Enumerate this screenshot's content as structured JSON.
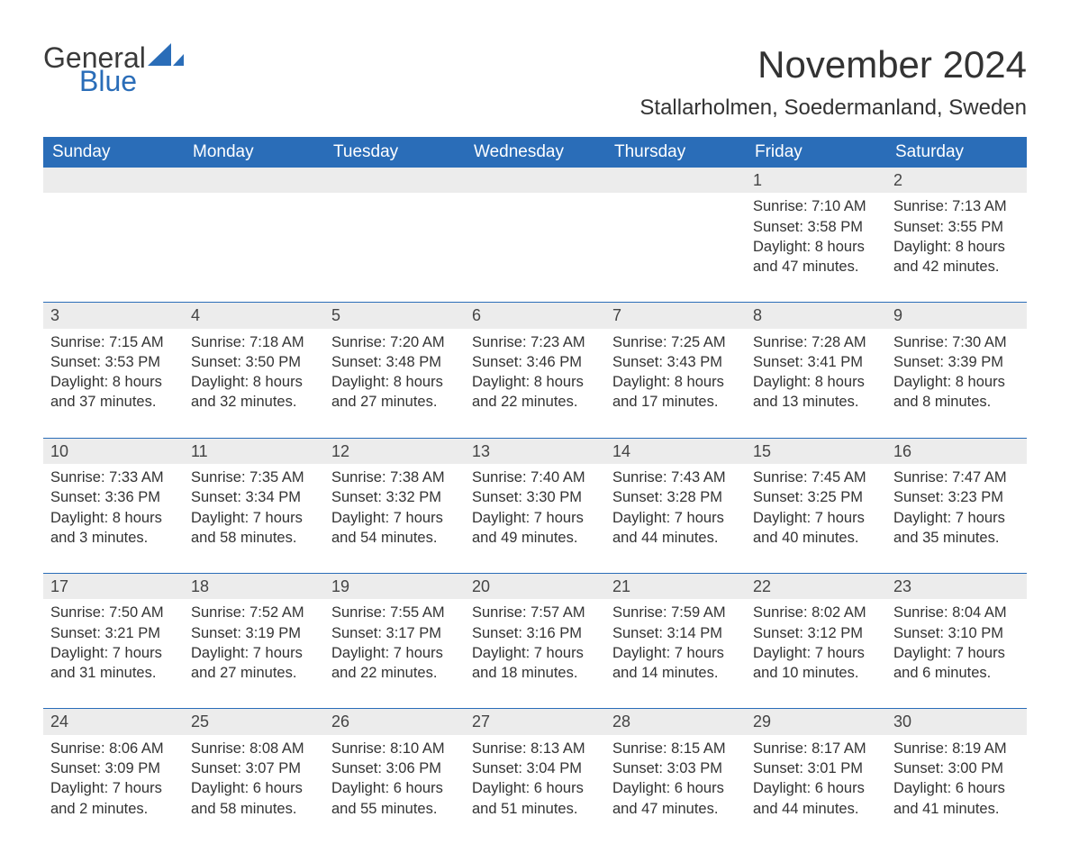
{
  "logo": {
    "general": "General",
    "blue": "Blue",
    "flag_color": "#2a6db8"
  },
  "title": "November 2024",
  "location": "Stallarholmen, Soedermanland, Sweden",
  "colors": {
    "header_bg": "#2a6db8",
    "header_fg": "#ffffff",
    "daynum_bg": "#ececec",
    "text": "#333333",
    "row_divider": "#2a6db8",
    "page_bg": "#ffffff"
  },
  "weekdays": [
    "Sunday",
    "Monday",
    "Tuesday",
    "Wednesday",
    "Thursday",
    "Friday",
    "Saturday"
  ],
  "weeks": [
    [
      {
        "n": "",
        "empty": true
      },
      {
        "n": "",
        "empty": true
      },
      {
        "n": "",
        "empty": true
      },
      {
        "n": "",
        "empty": true
      },
      {
        "n": "",
        "empty": true
      },
      {
        "n": "1",
        "sunrise": "Sunrise: 7:10 AM",
        "sunset": "Sunset: 3:58 PM",
        "daylight1": "Daylight: 8 hours",
        "daylight2": "and 47 minutes."
      },
      {
        "n": "2",
        "sunrise": "Sunrise: 7:13 AM",
        "sunset": "Sunset: 3:55 PM",
        "daylight1": "Daylight: 8 hours",
        "daylight2": "and 42 minutes."
      }
    ],
    [
      {
        "n": "3",
        "sunrise": "Sunrise: 7:15 AM",
        "sunset": "Sunset: 3:53 PM",
        "daylight1": "Daylight: 8 hours",
        "daylight2": "and 37 minutes."
      },
      {
        "n": "4",
        "sunrise": "Sunrise: 7:18 AM",
        "sunset": "Sunset: 3:50 PM",
        "daylight1": "Daylight: 8 hours",
        "daylight2": "and 32 minutes."
      },
      {
        "n": "5",
        "sunrise": "Sunrise: 7:20 AM",
        "sunset": "Sunset: 3:48 PM",
        "daylight1": "Daylight: 8 hours",
        "daylight2": "and 27 minutes."
      },
      {
        "n": "6",
        "sunrise": "Sunrise: 7:23 AM",
        "sunset": "Sunset: 3:46 PM",
        "daylight1": "Daylight: 8 hours",
        "daylight2": "and 22 minutes."
      },
      {
        "n": "7",
        "sunrise": "Sunrise: 7:25 AM",
        "sunset": "Sunset: 3:43 PM",
        "daylight1": "Daylight: 8 hours",
        "daylight2": "and 17 minutes."
      },
      {
        "n": "8",
        "sunrise": "Sunrise: 7:28 AM",
        "sunset": "Sunset: 3:41 PM",
        "daylight1": "Daylight: 8 hours",
        "daylight2": "and 13 minutes."
      },
      {
        "n": "9",
        "sunrise": "Sunrise: 7:30 AM",
        "sunset": "Sunset: 3:39 PM",
        "daylight1": "Daylight: 8 hours",
        "daylight2": "and 8 minutes."
      }
    ],
    [
      {
        "n": "10",
        "sunrise": "Sunrise: 7:33 AM",
        "sunset": "Sunset: 3:36 PM",
        "daylight1": "Daylight: 8 hours",
        "daylight2": "and 3 minutes."
      },
      {
        "n": "11",
        "sunrise": "Sunrise: 7:35 AM",
        "sunset": "Sunset: 3:34 PM",
        "daylight1": "Daylight: 7 hours",
        "daylight2": "and 58 minutes."
      },
      {
        "n": "12",
        "sunrise": "Sunrise: 7:38 AM",
        "sunset": "Sunset: 3:32 PM",
        "daylight1": "Daylight: 7 hours",
        "daylight2": "and 54 minutes."
      },
      {
        "n": "13",
        "sunrise": "Sunrise: 7:40 AM",
        "sunset": "Sunset: 3:30 PM",
        "daylight1": "Daylight: 7 hours",
        "daylight2": "and 49 minutes."
      },
      {
        "n": "14",
        "sunrise": "Sunrise: 7:43 AM",
        "sunset": "Sunset: 3:28 PM",
        "daylight1": "Daylight: 7 hours",
        "daylight2": "and 44 minutes."
      },
      {
        "n": "15",
        "sunrise": "Sunrise: 7:45 AM",
        "sunset": "Sunset: 3:25 PM",
        "daylight1": "Daylight: 7 hours",
        "daylight2": "and 40 minutes."
      },
      {
        "n": "16",
        "sunrise": "Sunrise: 7:47 AM",
        "sunset": "Sunset: 3:23 PM",
        "daylight1": "Daylight: 7 hours",
        "daylight2": "and 35 minutes."
      }
    ],
    [
      {
        "n": "17",
        "sunrise": "Sunrise: 7:50 AM",
        "sunset": "Sunset: 3:21 PM",
        "daylight1": "Daylight: 7 hours",
        "daylight2": "and 31 minutes."
      },
      {
        "n": "18",
        "sunrise": "Sunrise: 7:52 AM",
        "sunset": "Sunset: 3:19 PM",
        "daylight1": "Daylight: 7 hours",
        "daylight2": "and 27 minutes."
      },
      {
        "n": "19",
        "sunrise": "Sunrise: 7:55 AM",
        "sunset": "Sunset: 3:17 PM",
        "daylight1": "Daylight: 7 hours",
        "daylight2": "and 22 minutes."
      },
      {
        "n": "20",
        "sunrise": "Sunrise: 7:57 AM",
        "sunset": "Sunset: 3:16 PM",
        "daylight1": "Daylight: 7 hours",
        "daylight2": "and 18 minutes."
      },
      {
        "n": "21",
        "sunrise": "Sunrise: 7:59 AM",
        "sunset": "Sunset: 3:14 PM",
        "daylight1": "Daylight: 7 hours",
        "daylight2": "and 14 minutes."
      },
      {
        "n": "22",
        "sunrise": "Sunrise: 8:02 AM",
        "sunset": "Sunset: 3:12 PM",
        "daylight1": "Daylight: 7 hours",
        "daylight2": "and 10 minutes."
      },
      {
        "n": "23",
        "sunrise": "Sunrise: 8:04 AM",
        "sunset": "Sunset: 3:10 PM",
        "daylight1": "Daylight: 7 hours",
        "daylight2": "and 6 minutes."
      }
    ],
    [
      {
        "n": "24",
        "sunrise": "Sunrise: 8:06 AM",
        "sunset": "Sunset: 3:09 PM",
        "daylight1": "Daylight: 7 hours",
        "daylight2": "and 2 minutes."
      },
      {
        "n": "25",
        "sunrise": "Sunrise: 8:08 AM",
        "sunset": "Sunset: 3:07 PM",
        "daylight1": "Daylight: 6 hours",
        "daylight2": "and 58 minutes."
      },
      {
        "n": "26",
        "sunrise": "Sunrise: 8:10 AM",
        "sunset": "Sunset: 3:06 PM",
        "daylight1": "Daylight: 6 hours",
        "daylight2": "and 55 minutes."
      },
      {
        "n": "27",
        "sunrise": "Sunrise: 8:13 AM",
        "sunset": "Sunset: 3:04 PM",
        "daylight1": "Daylight: 6 hours",
        "daylight2": "and 51 minutes."
      },
      {
        "n": "28",
        "sunrise": "Sunrise: 8:15 AM",
        "sunset": "Sunset: 3:03 PM",
        "daylight1": "Daylight: 6 hours",
        "daylight2": "and 47 minutes."
      },
      {
        "n": "29",
        "sunrise": "Sunrise: 8:17 AM",
        "sunset": "Sunset: 3:01 PM",
        "daylight1": "Daylight: 6 hours",
        "daylight2": "and 44 minutes."
      },
      {
        "n": "30",
        "sunrise": "Sunrise: 8:19 AM",
        "sunset": "Sunset: 3:00 PM",
        "daylight1": "Daylight: 6 hours",
        "daylight2": "and 41 minutes."
      }
    ]
  ]
}
